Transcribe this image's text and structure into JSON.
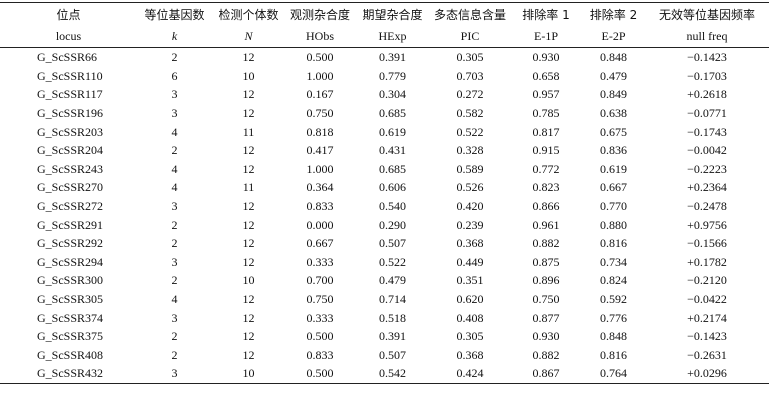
{
  "header": {
    "columns": [
      {
        "zh": "位点",
        "en": "locus"
      },
      {
        "zh": "等位基因数",
        "en": "k"
      },
      {
        "zh": "检测个体数",
        "en": "N"
      },
      {
        "zh": "观测杂合度",
        "en": "HObs"
      },
      {
        "zh": "期望杂合度",
        "en": "HExp"
      },
      {
        "zh": "多态信息含量",
        "en": "PIC"
      },
      {
        "zh": "排除率 1",
        "en": "E-1P"
      },
      {
        "zh": "排除率 2",
        "en": "E-2P"
      },
      {
        "zh": "无效等位基因频率",
        "en": "null freq"
      }
    ]
  },
  "table": {
    "rows": [
      [
        "G_ScSSR66",
        "2",
        "12",
        "0.500",
        "0.391",
        "0.305",
        "0.930",
        "0.848",
        "−0.1423"
      ],
      [
        "G_ScSSR110",
        "6",
        "10",
        "1.000",
        "0.779",
        "0.703",
        "0.658",
        "0.479",
        "−0.1703"
      ],
      [
        "G_ScSSR117",
        "3",
        "12",
        "0.167",
        "0.304",
        "0.272",
        "0.957",
        "0.849",
        "+0.2618"
      ],
      [
        "G_ScSSR196",
        "3",
        "12",
        "0.750",
        "0.685",
        "0.582",
        "0.785",
        "0.638",
        "−0.0771"
      ],
      [
        "G_ScSSR203",
        "4",
        "11",
        "0.818",
        "0.619",
        "0.522",
        "0.817",
        "0.675",
        "−0.1743"
      ],
      [
        "G_ScSSR204",
        "2",
        "12",
        "0.417",
        "0.431",
        "0.328",
        "0.915",
        "0.836",
        "−0.0042"
      ],
      [
        "G_ScSSR243",
        "4",
        "12",
        "1.000",
        "0.685",
        "0.589",
        "0.772",
        "0.619",
        "−0.2223"
      ],
      [
        "G_ScSSR270",
        "4",
        "11",
        "0.364",
        "0.606",
        "0.526",
        "0.823",
        "0.667",
        "+0.2364"
      ],
      [
        "G_ScSSR272",
        "3",
        "12",
        "0.833",
        "0.540",
        "0.420",
        "0.866",
        "0.770",
        "−0.2478"
      ],
      [
        "G_ScSSR291",
        "2",
        "12",
        "0.000",
        "0.290",
        "0.239",
        "0.961",
        "0.880",
        "+0.9756"
      ],
      [
        "G_ScSSR292",
        "2",
        "12",
        "0.667",
        "0.507",
        "0.368",
        "0.882",
        "0.816",
        "−0.1566"
      ],
      [
        "G_ScSSR294",
        "3",
        "12",
        "0.333",
        "0.522",
        "0.449",
        "0.875",
        "0.734",
        "+0.1782"
      ],
      [
        "G_ScSSR300",
        "2",
        "10",
        "0.700",
        "0.479",
        "0.351",
        "0.896",
        "0.824",
        "−0.2120"
      ],
      [
        "G_ScSSR305",
        "4",
        "12",
        "0.750",
        "0.714",
        "0.620",
        "0.750",
        "0.592",
        "−0.0422"
      ],
      [
        "G_ScSSR374",
        "3",
        "12",
        "0.333",
        "0.518",
        "0.408",
        "0.877",
        "0.776",
        "+0.2174"
      ],
      [
        "G_ScSSR375",
        "2",
        "12",
        "0.500",
        "0.391",
        "0.305",
        "0.930",
        "0.848",
        "−0.1423"
      ],
      [
        "G_ScSSR408",
        "2",
        "12",
        "0.833",
        "0.507",
        "0.368",
        "0.882",
        "0.816",
        "−0.2631"
      ],
      [
        "G_ScSSR432",
        "3",
        "10",
        "0.500",
        "0.542",
        "0.424",
        "0.867",
        "0.764",
        "+0.0296"
      ]
    ]
  }
}
